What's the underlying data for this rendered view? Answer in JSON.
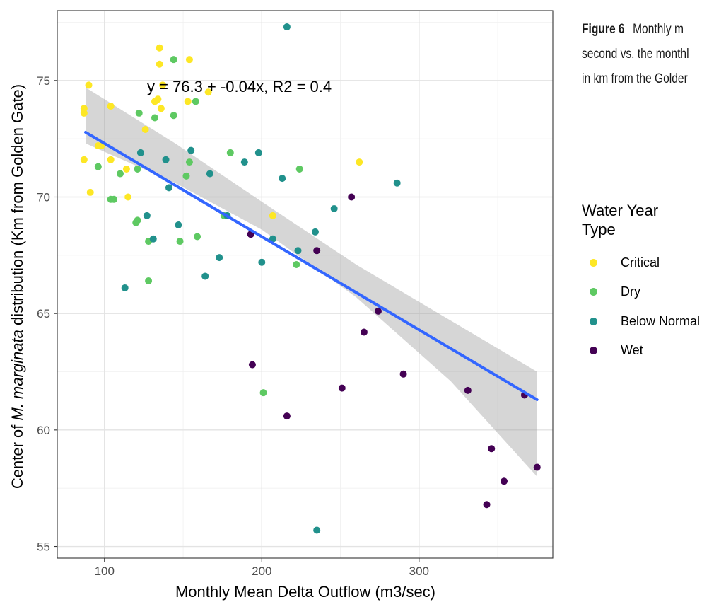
{
  "caption": {
    "figure_number": "Figure 6",
    "lines": [
      "Monthly m",
      "second vs. the monthl",
      "in km from the Golder"
    ]
  },
  "legend": {
    "title": "Water Year Type",
    "items": [
      {
        "label": "Critical",
        "color": "#FDE725"
      },
      {
        "label": "Dry",
        "color": "#5EC962"
      },
      {
        "label": "Below Normal",
        "color": "#21918C"
      },
      {
        "label": "Wet",
        "color": "#440154"
      }
    ]
  },
  "chart_data": {
    "type": "scatter",
    "xlabel": "Monthly Mean Delta Outflow (m3/sec)",
    "ylabel_prefix": "Center of ",
    "ylabel_italic": "M. marginata",
    "ylabel_suffix": " distribution (Km from Golden Gate)",
    "annotation": "y = 76.3 + -0.04x, R2 = 0.4",
    "xlim": [
      70,
      385
    ],
    "ylim": [
      54.5,
      78
    ],
    "xticks": [
      100,
      200,
      300
    ],
    "yticks": [
      55,
      60,
      65,
      70,
      75
    ],
    "grid": true,
    "legend_position": "right",
    "fit": {
      "intercept": 76.3,
      "slope": -0.04,
      "x_range": [
        88,
        375
      ],
      "color": "#3366FF"
    },
    "confidence_band": [
      {
        "x": 88,
        "lo": 72.3,
        "hi": 74.7
      },
      {
        "x": 145,
        "lo": 70.6,
        "hi": 72.3
      },
      {
        "x": 200,
        "lo": 68.6,
        "hi": 69.8
      },
      {
        "x": 260,
        "lo": 65.7,
        "hi": 67.1
      },
      {
        "x": 320,
        "lo": 62.1,
        "hi": 64.7
      },
      {
        "x": 375,
        "lo": 58.0,
        "hi": 62.5
      }
    ],
    "series": [
      {
        "name": "Critical",
        "color": "#FDE725",
        "points": [
          [
            87,
            73.8
          ],
          [
            87,
            73.6
          ],
          [
            87,
            71.6
          ],
          [
            90,
            74.8
          ],
          [
            91,
            70.2
          ],
          [
            96,
            72.2
          ],
          [
            98,
            72.2
          ],
          [
            104,
            73.9
          ],
          [
            104,
            71.6
          ],
          [
            114,
            71.2
          ],
          [
            115,
            70.0
          ],
          [
            126,
            72.9
          ],
          [
            132,
            74.1
          ],
          [
            134,
            74.2
          ],
          [
            135,
            76.4
          ],
          [
            135,
            75.7
          ],
          [
            136,
            73.8
          ],
          [
            137,
            74.8
          ],
          [
            153,
            74.1
          ],
          [
            154,
            75.9
          ],
          [
            166,
            74.5
          ],
          [
            207,
            69.2
          ],
          [
            262,
            71.5
          ]
        ]
      },
      {
        "name": "Dry",
        "color": "#5EC962",
        "points": [
          [
            96,
            71.3
          ],
          [
            104,
            69.9
          ],
          [
            106,
            69.9
          ],
          [
            110,
            71.0
          ],
          [
            120,
            68.9
          ],
          [
            121,
            69.0
          ],
          [
            121,
            71.2
          ],
          [
            122,
            73.6
          ],
          [
            128,
            68.1
          ],
          [
            128,
            66.4
          ],
          [
            132,
            73.4
          ],
          [
            144,
            75.9
          ],
          [
            144,
            73.5
          ],
          [
            148,
            68.1
          ],
          [
            152,
            70.9
          ],
          [
            154,
            71.5
          ],
          [
            158,
            74.1
          ],
          [
            159,
            68.3
          ],
          [
            176,
            69.2
          ],
          [
            180,
            71.9
          ],
          [
            201,
            61.6
          ],
          [
            222,
            67.1
          ],
          [
            224,
            71.2
          ]
        ]
      },
      {
        "name": "Below Normal",
        "color": "#21918C",
        "points": [
          [
            113,
            66.1
          ],
          [
            123,
            71.9
          ],
          [
            127,
            69.2
          ],
          [
            131,
            68.2
          ],
          [
            139,
            71.6
          ],
          [
            141,
            70.4
          ],
          [
            147,
            68.8
          ],
          [
            155,
            72.0
          ],
          [
            164,
            66.6
          ],
          [
            167,
            71.0
          ],
          [
            173,
            67.4
          ],
          [
            178,
            69.2
          ],
          [
            189,
            71.5
          ],
          [
            198,
            71.9
          ],
          [
            200,
            67.2
          ],
          [
            207,
            68.2
          ],
          [
            213,
            70.8
          ],
          [
            216,
            77.3
          ],
          [
            223,
            67.7
          ],
          [
            234,
            68.5
          ],
          [
            235,
            55.7
          ],
          [
            246,
            69.5
          ],
          [
            286,
            70.6
          ]
        ]
      },
      {
        "name": "Wet",
        "color": "#440154",
        "points": [
          [
            193,
            68.4
          ],
          [
            194,
            62.8
          ],
          [
            216,
            60.6
          ],
          [
            235,
            67.7
          ],
          [
            251,
            61.8
          ],
          [
            257,
            70.0
          ],
          [
            265,
            64.2
          ],
          [
            274,
            65.1
          ],
          [
            290,
            62.4
          ],
          [
            331,
            61.7
          ],
          [
            343,
            56.8
          ],
          [
            346,
            59.2
          ],
          [
            354,
            57.8
          ],
          [
            367,
            61.5
          ],
          [
            375,
            58.4
          ]
        ]
      }
    ]
  }
}
